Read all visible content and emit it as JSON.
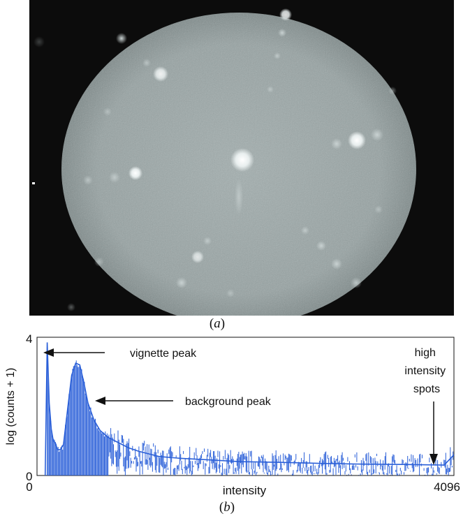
{
  "panel_a": {
    "caption": "(a)"
  },
  "panel_b": {
    "caption": "(b)"
  },
  "chart_data": {
    "type": "line",
    "title": "",
    "xlabel": "intensity",
    "ylabel": "log (counts + 1)",
    "xlim": [
      0,
      4096
    ],
    "ylim": [
      0,
      4
    ],
    "x_ticks": [
      "0",
      "4096"
    ],
    "y_ticks": [
      "0",
      "4"
    ],
    "grid": false,
    "series_color": "#2a5fd8",
    "annotations": [
      {
        "text": "vignette peak",
        "x": 150,
        "y": 3.8
      },
      {
        "text": "background peak",
        "x": 560,
        "y": 3.2
      },
      {
        "text": "high intensity spots",
        "x": 3900,
        "y": 0.35
      }
    ],
    "series": [
      {
        "x": [
          80,
          100,
          120,
          140,
          160,
          180,
          200,
          230,
          260,
          300,
          340,
          380,
          420,
          460,
          500,
          560,
          620,
          700,
          800,
          900,
          1000,
          1200,
          1400,
          1700,
          2000,
          2400,
          2800,
          3200,
          3600,
          4000,
          4096
        ],
        "y": [
          0.0,
          3.85,
          2.1,
          1.35,
          1.0,
          0.95,
          0.75,
          0.75,
          0.9,
          1.9,
          2.9,
          3.25,
          3.2,
          2.7,
          2.1,
          1.6,
          1.3,
          1.1,
          0.95,
          0.8,
          0.7,
          0.55,
          0.5,
          0.45,
          0.4,
          0.38,
          0.35,
          0.33,
          0.32,
          0.3,
          0.6
        ]
      }
    ]
  }
}
